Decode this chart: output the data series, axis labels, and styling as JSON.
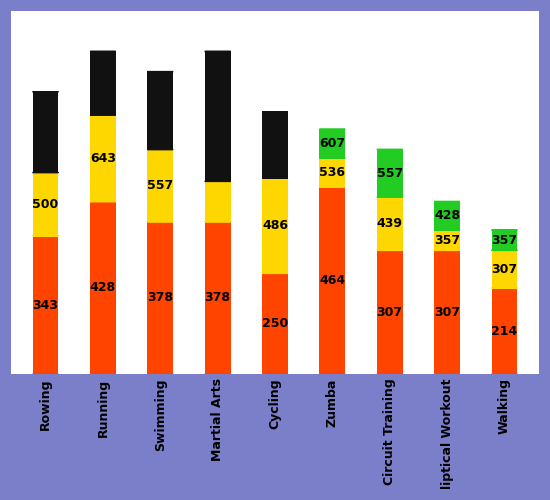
{
  "categories": [
    "Rowing",
    "Running",
    "Swimming",
    "Martial Arts",
    "Cycling",
    "Zumba",
    "Circuit Training",
    "liptical Workout",
    "Walking"
  ],
  "bars": [
    {
      "segments": [
        343,
        157,
        200
      ],
      "colors": [
        "orange_red",
        "yellow",
        "black"
      ],
      "labels": [
        343,
        500,
        null
      ]
    },
    {
      "segments": [
        428,
        215,
        157
      ],
      "colors": [
        "orange_red",
        "yellow",
        "black"
      ],
      "labels": [
        428,
        643,
        null
      ]
    },
    {
      "segments": [
        378,
        179,
        193
      ],
      "colors": [
        "orange_red",
        "yellow",
        "black"
      ],
      "labels": [
        378,
        557,
        null
      ]
    },
    {
      "segments": [
        378,
        100,
        322
      ],
      "colors": [
        "orange_red",
        "yellow",
        "black"
      ],
      "labels": [
        378,
        null,
        null
      ]
    },
    {
      "segments": [
        250,
        236,
        164
      ],
      "colors": [
        "orange_red",
        "yellow",
        "black"
      ],
      "labels": [
        250,
        486,
        null
      ]
    },
    {
      "segments": [
        464,
        72,
        71
      ],
      "colors": [
        "orange_red",
        "yellow",
        "green"
      ],
      "labels": [
        464,
        536,
        607
      ]
    },
    {
      "segments": [
        307,
        132,
        118
      ],
      "colors": [
        "orange_red",
        "yellow",
        "green"
      ],
      "labels": [
        307,
        439,
        557
      ]
    },
    {
      "segments": [
        307,
        50,
        71
      ],
      "colors": [
        "orange_red",
        "yellow",
        "green"
      ],
      "labels": [
        307,
        357,
        428
      ]
    },
    {
      "segments": [
        214,
        93,
        50
      ],
      "colors": [
        "orange_red",
        "yellow",
        "green"
      ],
      "labels": [
        214,
        307,
        357
      ]
    }
  ],
  "color_map": {
    "orange_red": "#FF4400",
    "yellow": "#FFD700",
    "black": "#111111",
    "green": "#22CC22"
  },
  "bg_color": "#7B7EC8",
  "plot_bg": "#FFFFFF",
  "bar_width": 0.45,
  "label_fontsize": 9,
  "tick_fontsize": 9,
  "ylim_max": 900,
  "figsize": [
    5.5,
    5.0
  ],
  "dpi": 100
}
